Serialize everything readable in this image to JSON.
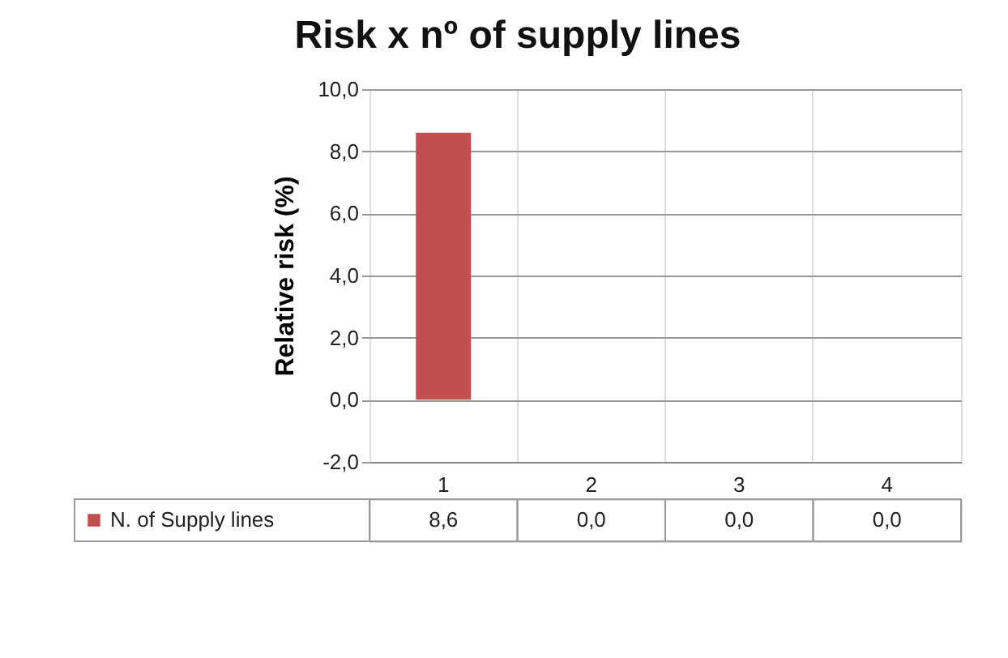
{
  "chart_data": {
    "type": "bar",
    "title": "Risk x nº of supply lines",
    "ylabel": "Relative risk (%)",
    "categories": [
      "1",
      "2",
      "3",
      "4"
    ],
    "series": [
      {
        "name": "N. of Supply lines",
        "color": "#c0504d",
        "values": [
          8.6,
          0.0,
          0.0,
          0.0
        ],
        "value_labels": [
          "8,6",
          "0,0",
          "0,0",
          "0,0"
        ]
      }
    ],
    "ylim": [
      -2,
      10
    ],
    "yticks": [
      {
        "value": -2,
        "label": "-2,0"
      },
      {
        "value": 0,
        "label": "0,0"
      },
      {
        "value": 2,
        "label": "2,0"
      },
      {
        "value": 4,
        "label": "4,0"
      },
      {
        "value": 6,
        "label": "6,0"
      },
      {
        "value": 8,
        "label": "8,0"
      },
      {
        "value": 10,
        "label": "10,0"
      }
    ],
    "grid": "y",
    "legend": "bottom"
  }
}
